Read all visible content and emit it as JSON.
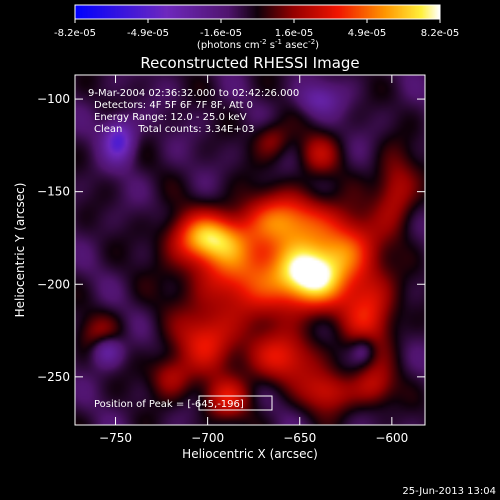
{
  "chart_data": {
    "type": "heatmap",
    "title": "Reconstructed RHESSI Image",
    "xlabel": "Heliocentric X (arcsec)",
    "ylabel": "Heliocentric Y (arcsec)",
    "xlim": [
      -772,
      -582
    ],
    "ylim": [
      -276,
      -87
    ],
    "x_ticks": [
      -750,
      -700,
      -650,
      -600
    ],
    "y_ticks": [
      -100,
      -150,
      -200,
      -250
    ],
    "colorbar": {
      "tick_labels": [
        "-8.2e-05",
        "-4.9e-05",
        "-1.6e-05",
        "1.6e-05",
        "4.9e-05",
        "8.2e-05"
      ],
      "min": -8.2e-05,
      "max": 8.2e-05,
      "unit_prefix": "(photons cm",
      "unit_sup1": "-2",
      "unit_mid": " s",
      "unit_sup2": "-1",
      "unit_mid2": " asec",
      "unit_sup3": "-2",
      "unit_suffix": ")"
    },
    "annotations": [
      "9-Mar-2004 02:36:32.000 to 02:42:26.000",
      "Detectors: 4F 5F 6F 7F 8F, Att 0",
      "Energy Range: 12.0 - 25.0 keV",
      "Clean     Total counts: 3.34E+03"
    ],
    "peak_label": "Position of Peak = [-645,-196]",
    "peak": [
      -645,
      -196
    ],
    "sources": [
      {
        "x": -700,
        "y": -175,
        "sx": 14,
        "sy": 9,
        "amp": 0.7
      },
      {
        "x": -680,
        "y": -192,
        "sx": 22,
        "sy": 18,
        "amp": 0.55
      },
      {
        "x": -645,
        "y": -196,
        "sx": 14,
        "sy": 12,
        "amp": 1.0
      },
      {
        "x": -655,
        "y": -165,
        "sx": 16,
        "sy": 10,
        "amp": 0.6
      },
      {
        "x": -625,
        "y": -180,
        "sx": 12,
        "sy": 12,
        "amp": 0.55
      },
      {
        "x": -612,
        "y": -215,
        "sx": 10,
        "sy": 16,
        "amp": 0.5
      },
      {
        "x": -660,
        "y": -240,
        "sx": 14,
        "sy": 10,
        "amp": 0.45
      },
      {
        "x": -700,
        "y": -230,
        "sx": 12,
        "sy": 12,
        "amp": 0.45
      },
      {
        "x": -720,
        "y": -250,
        "sx": 8,
        "sy": 8,
        "amp": 0.35
      },
      {
        "x": -690,
        "y": -262,
        "sx": 9,
        "sy": 8,
        "amp": 0.4
      },
      {
        "x": -635,
        "y": -258,
        "sx": 10,
        "sy": 8,
        "amp": 0.4
      },
      {
        "x": -610,
        "y": -255,
        "sx": 8,
        "sy": 8,
        "amp": 0.35
      },
      {
        "x": -598,
        "y": -150,
        "sx": 8,
        "sy": 14,
        "amp": 0.4
      },
      {
        "x": -640,
        "y": -130,
        "sx": 8,
        "sy": 8,
        "amp": 0.3
      },
      {
        "x": -665,
        "y": -122,
        "sx": 7,
        "sy": 7,
        "amp": 0.28
      },
      {
        "x": -758,
        "y": -228,
        "sx": 8,
        "sy": 8,
        "amp": 0.3
      },
      {
        "x": -748,
        "y": -122,
        "sx": 6,
        "sy": 8,
        "amp": -0.55
      },
      {
        "x": -755,
        "y": -235,
        "sx": 6,
        "sy": 6,
        "amp": -0.45
      },
      {
        "x": -640,
        "y": -100,
        "sx": 8,
        "sy": 6,
        "amp": -0.3
      },
      {
        "x": -615,
        "y": -235,
        "sx": 5,
        "sy": 6,
        "amp": -0.3
      }
    ]
  },
  "footer": {
    "timestamp": "25-Jun-2013 13:04"
  }
}
